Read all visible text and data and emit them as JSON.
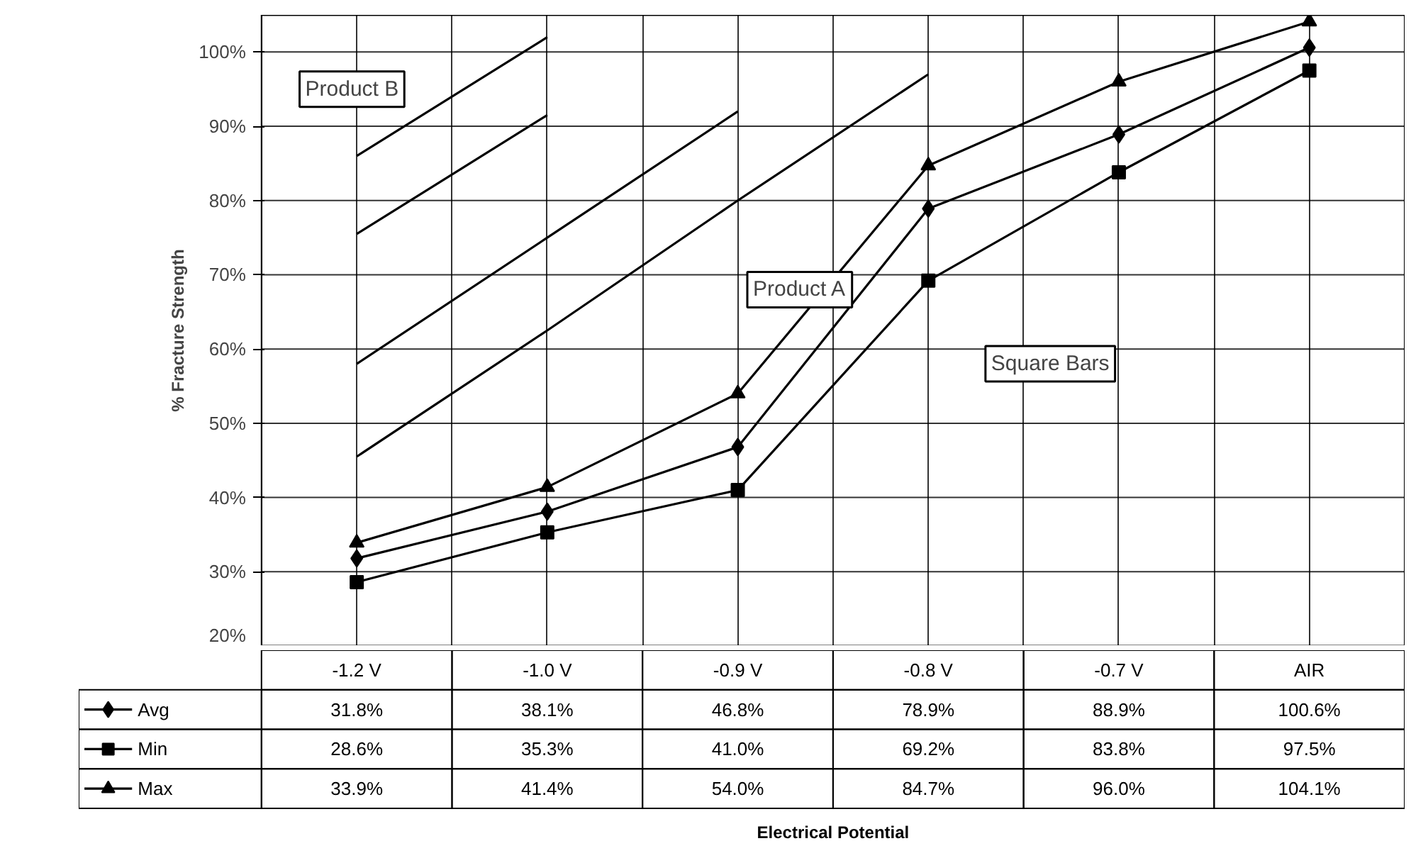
{
  "chart_data": {
    "type": "line",
    "ylabel": "% Fracture Strength",
    "categories": [
      "-1.2 V",
      "-1.0 V",
      "-0.9 V",
      "-0.8 V",
      "-0.7 V",
      "AIR"
    ],
    "ylim": [
      20,
      105
    ],
    "yticks": [
      {
        "value": 20,
        "label": "20%"
      },
      {
        "value": 30,
        "label": "30%"
      },
      {
        "value": 40,
        "label": "40%"
      },
      {
        "value": 50,
        "label": "50%"
      },
      {
        "value": 60,
        "label": "60%"
      },
      {
        "value": 70,
        "label": "70%"
      },
      {
        "value": 80,
        "label": "80%"
      },
      {
        "value": 90,
        "label": "90%"
      },
      {
        "value": 100,
        "label": "100%"
      }
    ],
    "grid": true,
    "legend": "bottom",
    "line_style": "solid",
    "series": [
      {
        "name": "Avg",
        "color": "#000000",
        "marker": "diamond",
        "values": [
          31.8,
          38.1,
          46.8,
          78.9,
          88.9,
          100.6
        ],
        "value_labels": [
          "31.8%",
          "38.1%",
          "46.8%",
          "78.9%",
          "88.9%",
          "100.6%"
        ]
      },
      {
        "name": "Min",
        "color": "#000000",
        "marker": "square",
        "values": [
          28.6,
          35.3,
          41.0,
          69.2,
          83.8,
          97.5
        ],
        "value_labels": [
          "28.6%",
          "35.3%",
          "41.0%",
          "69.2%",
          "83.8%",
          "97.5%"
        ]
      },
      {
        "name": "Max",
        "color": "#000000",
        "marker": "triangle",
        "values": [
          33.9,
          41.4,
          54.0,
          84.7,
          96.0,
          104.1
        ],
        "value_labels": [
          "33.9%",
          "41.4%",
          "54.0%",
          "84.7%",
          "96.0%",
          "104.1%"
        ]
      },
      {
        "color": "#000000",
        "marker": "none",
        "values": [
          86,
          102,
          null,
          null,
          null,
          null
        ]
      },
      {
        "color": "#000000",
        "marker": "none",
        "values": [
          75.5,
          91.5,
          null,
          null,
          null,
          null
        ]
      },
      {
        "color": "#000000",
        "marker": "none",
        "values": [
          58,
          75,
          92,
          null,
          null,
          null
        ]
      },
      {
        "color": "#000000",
        "marker": "none",
        "values": [
          45.5,
          62.5,
          80,
          97,
          null,
          null
        ]
      }
    ],
    "annotations": [
      "Product B",
      "Product A",
      "Square Bars",
      "Electrical Potential"
    ]
  }
}
